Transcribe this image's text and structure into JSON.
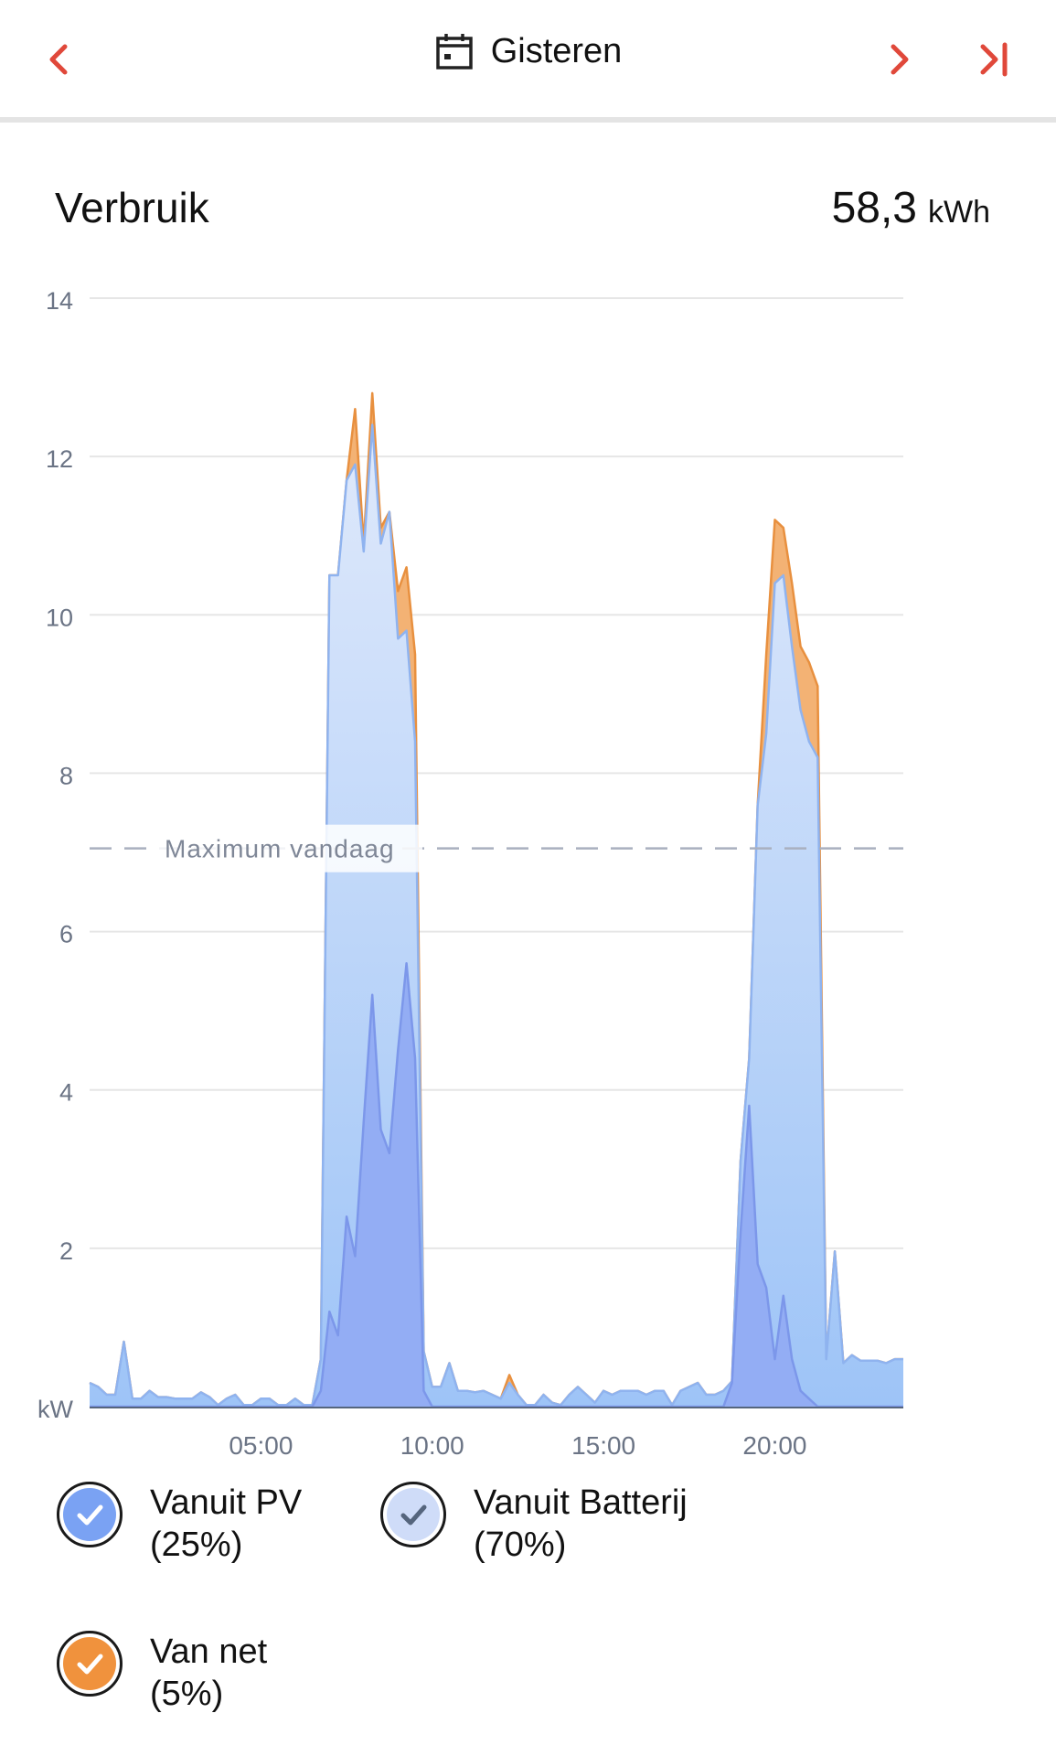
{
  "header": {
    "title": "Gisteren",
    "icons": {
      "back": "chevron-left-icon",
      "calendar": "calendar-icon",
      "next": "chevron-right-icon",
      "last": "skip-to-end-icon"
    },
    "accent_color": "#e0483a"
  },
  "card": {
    "title": "Verbruik",
    "total_value": "58,3",
    "total_unit": "kWh"
  },
  "legend": [
    {
      "label_line1": "Vanuit PV",
      "label_line2": "(25%)",
      "color": "#7aa2f3",
      "checkmark_color": "#ffffff",
      "checked": true
    },
    {
      "label_line1": "Vanuit Batterij",
      "label_line2": "(70%)",
      "color": "#cfdcf8",
      "checkmark_color": "#55657d",
      "checked": true
    },
    {
      "label_line1": "Van net",
      "label_line2": "(5%)",
      "color": "#f0923d",
      "checkmark_color": "#ffffff",
      "checked": true
    }
  ],
  "chart_data": {
    "type": "area",
    "stacked": true,
    "xlabel": "",
    "ylabel": "kW",
    "x_unit": "hour of day",
    "xlim": [
      0,
      23.75
    ],
    "ylim": [
      0,
      14
    ],
    "yticks": [
      "kW",
      "2",
      "4",
      "6",
      "8",
      "10",
      "12",
      "14"
    ],
    "xticks": [
      {
        "label": "05:00",
        "value": 5
      },
      {
        "label": "10:00",
        "value": 10
      },
      {
        "label": "15:00",
        "value": 15
      },
      {
        "label": "20:00",
        "value": 20
      }
    ],
    "grid": true,
    "reference_line": {
      "label": "Maximum vandaag",
      "value": 7.05
    },
    "x": [
      0,
      0.25,
      0.5,
      0.75,
      1,
      1.25,
      1.5,
      1.75,
      2,
      2.25,
      2.5,
      2.75,
      3,
      3.25,
      3.5,
      3.75,
      4,
      4.25,
      4.5,
      4.75,
      5,
      5.25,
      5.5,
      5.75,
      6,
      6.25,
      6.5,
      6.75,
      7,
      7.25,
      7.5,
      7.75,
      8,
      8.25,
      8.5,
      8.75,
      9,
      9.25,
      9.5,
      9.75,
      10,
      10.25,
      10.5,
      10.75,
      11,
      11.25,
      11.5,
      11.75,
      12,
      12.25,
      12.5,
      12.75,
      13,
      13.25,
      13.5,
      13.75,
      14,
      14.25,
      14.5,
      14.75,
      15,
      15.25,
      15.5,
      15.75,
      16,
      16.25,
      16.5,
      16.75,
      17,
      17.25,
      17.5,
      17.75,
      18,
      18.25,
      18.5,
      18.75,
      19,
      19.25,
      19.5,
      19.75,
      20,
      20.25,
      20.5,
      20.75,
      21,
      21.25,
      21.5,
      21.75,
      22,
      22.25,
      22.5,
      22.75,
      23,
      23.25,
      23.5,
      23.75
    ],
    "series": [
      {
        "name": "Vanuit PV",
        "color": "#7aa2f3",
        "values": [
          0,
          0,
          0,
          0,
          0,
          0,
          0,
          0,
          0,
          0,
          0,
          0,
          0,
          0,
          0,
          0,
          0,
          0,
          0,
          0,
          0,
          0,
          0,
          0,
          0,
          0,
          0,
          0.2,
          1.2,
          0.9,
          2.4,
          1.9,
          3.6,
          5.2,
          3.5,
          3.2,
          4.5,
          5.6,
          4.4,
          0.2,
          0,
          0,
          0,
          0,
          0,
          0,
          0,
          0,
          0,
          0,
          0,
          0,
          0,
          0,
          0,
          0,
          0,
          0,
          0,
          0,
          0,
          0,
          0,
          0,
          0,
          0,
          0,
          0,
          0,
          0,
          0,
          0,
          0,
          0,
          0,
          0.3,
          2.2,
          3.8,
          1.8,
          1.5,
          0.6,
          1.4,
          0.6,
          0.2,
          0.1,
          0,
          0,
          0,
          0,
          0,
          0,
          0,
          0,
          0,
          0,
          0
        ]
      },
      {
        "name": "Vanuit Batterij",
        "color": "#aecbf8",
        "values": [
          0.3,
          0.25,
          0.15,
          0.15,
          0.82,
          0.1,
          0.1,
          0.2,
          0.12,
          0.12,
          0.1,
          0.1,
          0.1,
          0.18,
          0.12,
          0.02,
          0.1,
          0.15,
          0.02,
          0.02,
          0.1,
          0.1,
          0.02,
          0.02,
          0.1,
          0.02,
          0.02,
          0.4,
          9.3,
          9.6,
          9.3,
          10.0,
          7.2,
          7.2,
          7.4,
          8.1,
          5.2,
          4.2,
          4.0,
          0.5,
          0.25,
          0.25,
          0.55,
          0.2,
          0.2,
          0.18,
          0.2,
          0.15,
          0.1,
          0.3,
          0.15,
          0.02,
          0.02,
          0.15,
          0.05,
          0.02,
          0.15,
          0.25,
          0.15,
          0.05,
          0.2,
          0.15,
          0.2,
          0.2,
          0.2,
          0.15,
          0.2,
          0.2,
          0.02,
          0.2,
          0.25,
          0.3,
          0.15,
          0.15,
          0.2,
          0.02,
          0.9,
          0.6,
          5.8,
          7.0,
          9.8,
          9.1,
          9.0,
          8.6,
          8.3,
          8.2,
          0.6,
          1.96,
          0.55,
          0.65,
          0.58,
          0.58,
          0.58,
          0.55,
          0.6,
          0.6
        ]
      },
      {
        "name": "Van net",
        "color": "#f0923d",
        "values": [
          0,
          0,
          0,
          0,
          0,
          0,
          0,
          0,
          0,
          0,
          0,
          0,
          0,
          0,
          0,
          0,
          0,
          0,
          0,
          0,
          0,
          0,
          0,
          0,
          0,
          0,
          0,
          0,
          0,
          0,
          0,
          0.7,
          0.1,
          0.4,
          0.2,
          0,
          0.6,
          0.8,
          1.1,
          0,
          0,
          0,
          0,
          0,
          0,
          0,
          0,
          0,
          0,
          0.1,
          0,
          0,
          0,
          0,
          0,
          0,
          0,
          0,
          0,
          0,
          0,
          0,
          0,
          0,
          0,
          0,
          0,
          0,
          0,
          0,
          0,
          0,
          0,
          0,
          0,
          0,
          0,
          0,
          0,
          1.0,
          0.8,
          0.6,
          0.8,
          0.8,
          1.0,
          0.9,
          0,
          0,
          0,
          0,
          0,
          0,
          0,
          0,
          0,
          0
        ]
      }
    ]
  }
}
